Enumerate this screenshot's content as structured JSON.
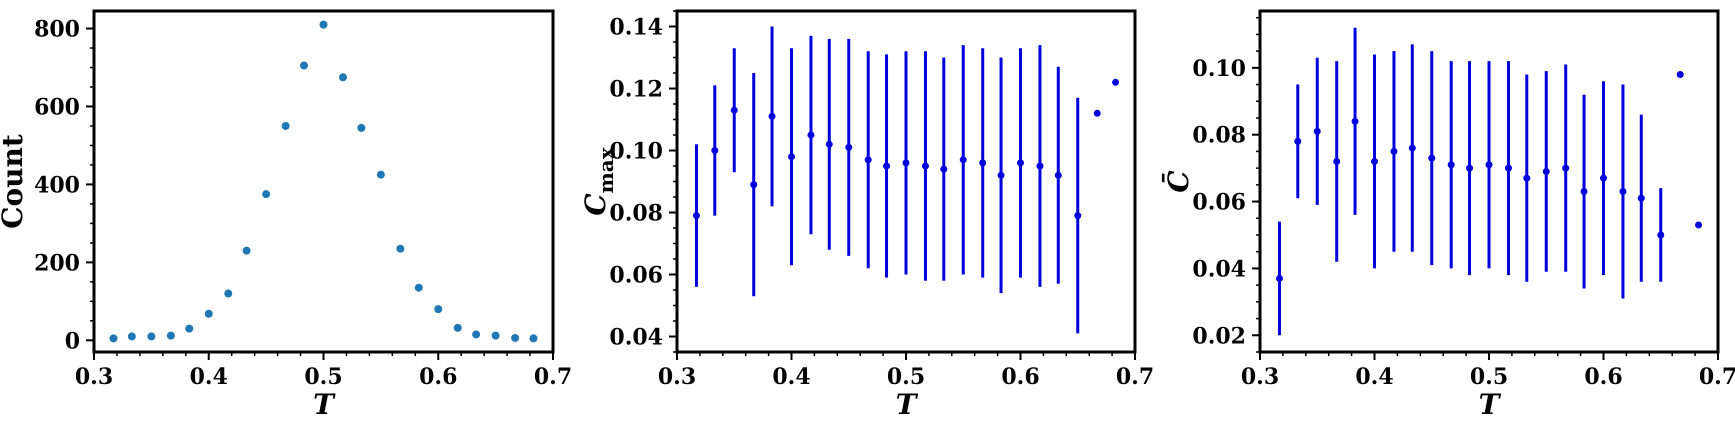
{
  "chart_data": [
    {
      "type": "scatter",
      "xlabel": "T",
      "ylabel": "Count",
      "xlim": [
        0.3,
        0.7
      ],
      "ylim": [
        -30,
        845
      ],
      "xticks": [
        0.3,
        0.4,
        0.5,
        0.6,
        0.7
      ],
      "xtick_labels": [
        "0.3",
        "0.4",
        "0.5",
        "0.6",
        "0.7"
      ],
      "yticks": [
        0,
        200,
        400,
        600,
        800
      ],
      "ytick_labels": [
        "0",
        "200",
        "400",
        "600",
        "800"
      ],
      "color": "#1f77b4",
      "x": [
        0.317,
        0.333,
        0.35,
        0.367,
        0.383,
        0.4,
        0.417,
        0.433,
        0.45,
        0.467,
        0.483,
        0.5,
        0.517,
        0.533,
        0.55,
        0.567,
        0.583,
        0.6,
        0.617,
        0.633,
        0.65,
        0.667,
        0.683
      ],
      "y": [
        5,
        10,
        10,
        12,
        30,
        68,
        120,
        230,
        375,
        550,
        705,
        810,
        675,
        545,
        425,
        235,
        135,
        80,
        32,
        15,
        12,
        6,
        5
      ]
    },
    {
      "type": "errorbar",
      "xlabel": "T",
      "ylabel_main": "C",
      "ylabel_sub": "max",
      "xlim": [
        0.3,
        0.7
      ],
      "ylim": [
        0.035,
        0.145
      ],
      "xticks": [
        0.3,
        0.4,
        0.5,
        0.6,
        0.7
      ],
      "xtick_labels": [
        "0.3",
        "0.4",
        "0.5",
        "0.6",
        "0.7"
      ],
      "yticks": [
        0.04,
        0.06,
        0.08,
        0.1,
        0.12,
        0.14
      ],
      "ytick_labels": [
        "0.04",
        "0.06",
        "0.08",
        "0.10",
        "0.12",
        "0.14"
      ],
      "color": "#0000dd",
      "x": [
        0.317,
        0.333,
        0.35,
        0.367,
        0.383,
        0.4,
        0.417,
        0.433,
        0.45,
        0.467,
        0.483,
        0.5,
        0.517,
        0.533,
        0.55,
        0.567,
        0.583,
        0.6,
        0.617,
        0.633,
        0.65,
        0.667,
        0.683
      ],
      "y": [
        0.079,
        0.1,
        0.113,
        0.089,
        0.111,
        0.098,
        0.105,
        0.102,
        0.101,
        0.097,
        0.095,
        0.096,
        0.095,
        0.094,
        0.097,
        0.096,
        0.092,
        0.096,
        0.095,
        0.092,
        0.079,
        0.112,
        0.122
      ],
      "yerr": [
        0.023,
        0.021,
        0.02,
        0.036,
        0.029,
        0.035,
        0.032,
        0.034,
        0.035,
        0.035,
        0.036,
        0.036,
        0.037,
        0.036,
        0.037,
        0.037,
        0.038,
        0.037,
        0.039,
        0.035,
        0.038,
        0,
        0
      ]
    },
    {
      "type": "errorbar",
      "xlabel": "T",
      "ylabel": "C̄",
      "xlim": [
        0.3,
        0.7
      ],
      "ylim": [
        0.015,
        0.117
      ],
      "xticks": [
        0.3,
        0.4,
        0.5,
        0.6,
        0.7
      ],
      "xtick_labels": [
        "0.3",
        "0.4",
        "0.5",
        "0.6",
        "0.7"
      ],
      "yticks": [
        0.02,
        0.04,
        0.06,
        0.08,
        0.1
      ],
      "ytick_labels": [
        "0.02",
        "0.04",
        "0.06",
        "0.08",
        "0.10"
      ],
      "color": "#0000dd",
      "x": [
        0.317,
        0.333,
        0.35,
        0.367,
        0.383,
        0.4,
        0.417,
        0.433,
        0.45,
        0.467,
        0.483,
        0.5,
        0.517,
        0.533,
        0.55,
        0.567,
        0.583,
        0.6,
        0.617,
        0.633,
        0.65,
        0.667,
        0.683
      ],
      "y": [
        0.037,
        0.078,
        0.081,
        0.072,
        0.084,
        0.072,
        0.075,
        0.076,
        0.073,
        0.071,
        0.07,
        0.071,
        0.07,
        0.067,
        0.069,
        0.07,
        0.063,
        0.067,
        0.063,
        0.061,
        0.05,
        0.098,
        0.053
      ],
      "yerr": [
        0.017,
        0.017,
        0.022,
        0.03,
        0.028,
        0.032,
        0.03,
        0.031,
        0.032,
        0.031,
        0.032,
        0.031,
        0.032,
        0.031,
        0.03,
        0.031,
        0.029,
        0.029,
        0.032,
        0.025,
        0.014,
        0,
        0
      ]
    }
  ]
}
